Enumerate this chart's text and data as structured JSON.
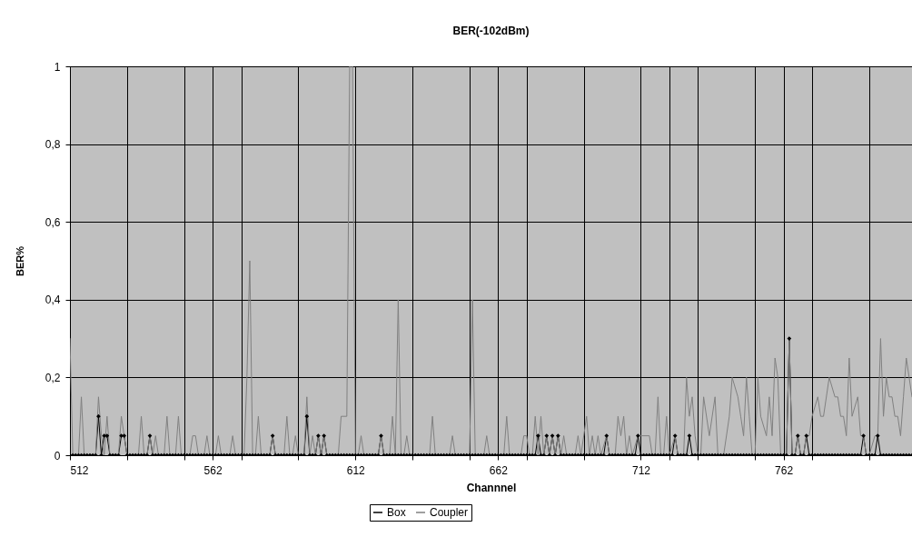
{
  "chart_data": {
    "type": "line",
    "title": "BER(-102dBm)",
    "xlabel": "Channnel",
    "ylabel": "BER%",
    "xlim": [
      512,
      807
    ],
    "xticks": [
      512,
      {
        "value": 532,
        "label": null
      },
      {
        "value": 552,
        "label": null
      },
      562,
      {
        "value": 572,
        "label": null
      },
      {
        "value": 592,
        "label": null
      },
      612,
      {
        "value": 632,
        "label": null
      },
      {
        "value": 652,
        "label": null
      },
      662,
      {
        "value": 672,
        "label": null
      },
      {
        "value": 692,
        "label": null
      },
      712,
      {
        "value": 722,
        "label": null
      },
      {
        "value": 732,
        "label": null
      },
      {
        "value": 752,
        "label": null
      },
      762,
      {
        "value": 772,
        "label": null
      },
      {
        "value": 792,
        "label": null
      }
    ],
    "ylim": [
      0,
      1
    ],
    "yticks": [
      0,
      {
        "value": 0.2,
        "label": "0,2"
      },
      {
        "value": 0.4,
        "label": "0,4"
      },
      {
        "value": 0.6,
        "label": "0,6"
      },
      {
        "value": 0.8,
        "label": "0,8"
      },
      1
    ],
    "grid": true,
    "legend": "bottom",
    "x": [
      512,
      513,
      514,
      515,
      516,
      517,
      518,
      519,
      520,
      521,
      522,
      523,
      524,
      525,
      526,
      527,
      528,
      529,
      530,
      531,
      532,
      533,
      534,
      535,
      536,
      537,
      538,
      539,
      540,
      541,
      542,
      543,
      544,
      545,
      546,
      547,
      548,
      549,
      550,
      551,
      552,
      553,
      554,
      555,
      556,
      557,
      558,
      559,
      560,
      561,
      562,
      563,
      564,
      565,
      566,
      567,
      568,
      569,
      570,
      571,
      572,
      573,
      574,
      575,
      576,
      577,
      578,
      579,
      580,
      581,
      582,
      583,
      584,
      585,
      586,
      587,
      588,
      589,
      590,
      591,
      592,
      593,
      594,
      595,
      596,
      597,
      598,
      599,
      600,
      601,
      602,
      603,
      604,
      605,
      606,
      607,
      608,
      609,
      610,
      611,
      612,
      613,
      614,
      615,
      616,
      617,
      618,
      619,
      620,
      621,
      622,
      623,
      624,
      625,
      626,
      627,
      628,
      629,
      630,
      631,
      632,
      633,
      634,
      635,
      636,
      637,
      638,
      639,
      640,
      641,
      642,
      643,
      644,
      645,
      646,
      647,
      648,
      649,
      650,
      651,
      652,
      653,
      654,
      655,
      656,
      657,
      658,
      659,
      660,
      661,
      662,
      663,
      664,
      665,
      666,
      667,
      668,
      669,
      670,
      671,
      672,
      673,
      674,
      675,
      676,
      677,
      678,
      679,
      680,
      681,
      682,
      683,
      684,
      685,
      686,
      687,
      688,
      689,
      690,
      691,
      692,
      693,
      694,
      695,
      696,
      697,
      698,
      699,
      700,
      701,
      702,
      703,
      704,
      705,
      706,
      707,
      708,
      709,
      710,
      711,
      712,
      713,
      714,
      715,
      716,
      717,
      718,
      719,
      720,
      721,
      722,
      723,
      724,
      725,
      726,
      727,
      728,
      729,
      730,
      731,
      732,
      733,
      734,
      735,
      736,
      737,
      738,
      739,
      740,
      741,
      742,
      743,
      744,
      745,
      746,
      747,
      748,
      749,
      750,
      751,
      752,
      753,
      754,
      755,
      756,
      757,
      758,
      759,
      760,
      761,
      762,
      763,
      764,
      765,
      766,
      767,
      768,
      769,
      770,
      771,
      772,
      773,
      774,
      775,
      776,
      777,
      778,
      779,
      780,
      781,
      782,
      783,
      784,
      785,
      786,
      787,
      788,
      789,
      790,
      791,
      792,
      793,
      794,
      795,
      796,
      797,
      798,
      799,
      800,
      801,
      802,
      803,
      804,
      805,
      806,
      807
    ],
    "series": [
      {
        "name": "Box",
        "color": "#000000",
        "marker": "diamond",
        "values": [
          0,
          0,
          0,
          0,
          0,
          0,
          0,
          0,
          0,
          0,
          0.1,
          0,
          0.05,
          0.05,
          0,
          0,
          0,
          0,
          0.05,
          0.05,
          0,
          0,
          0,
          0,
          0,
          0,
          0,
          0,
          0.05,
          0,
          0,
          0,
          0,
          0,
          0,
          0,
          0,
          0,
          0,
          0,
          0,
          0,
          0,
          0,
          0,
          0,
          0,
          0,
          0,
          0,
          0,
          0,
          0,
          0,
          0,
          0,
          0,
          0,
          0,
          0,
          0,
          0,
          0,
          0,
          0,
          0,
          0,
          0,
          0,
          0,
          0,
          0.05,
          0,
          0,
          0,
          0,
          0,
          0,
          0,
          0,
          0,
          0,
          0,
          0.1,
          0,
          0,
          0,
          0.05,
          0,
          0.05,
          0,
          0,
          0,
          0,
          0,
          0,
          0,
          0,
          0,
          0,
          0,
          0,
          0,
          0,
          0,
          0,
          0,
          0,
          0,
          0.05,
          0,
          0,
          0,
          0,
          0,
          0,
          0,
          0,
          0,
          0,
          0,
          0,
          0,
          0,
          0,
          0,
          0,
          0,
          0,
          0,
          0,
          0,
          0,
          0,
          0,
          0,
          0,
          0,
          0,
          0,
          0,
          0,
          0,
          0,
          0,
          0,
          0,
          0,
          0,
          0,
          0,
          0,
          0,
          0,
          0,
          0,
          0,
          0,
          0,
          0,
          0,
          0,
          0,
          0,
          0.05,
          0,
          0,
          0.05,
          0,
          0.05,
          0,
          0.05,
          0,
          0,
          0,
          0,
          0,
          0,
          0,
          0,
          0,
          0,
          0,
          0,
          0,
          0,
          0,
          0,
          0.05,
          0,
          0,
          0,
          0,
          0,
          0,
          0,
          0,
          0,
          0,
          0.05,
          0,
          0,
          0,
          0,
          0,
          0,
          0,
          0,
          0,
          0,
          0,
          0,
          0.05,
          0,
          0,
          0,
          0,
          0.05,
          0,
          0,
          0,
          0,
          0,
          0,
          0,
          0,
          0,
          0,
          0,
          0,
          0,
          0,
          0,
          0,
          0,
          0,
          0,
          0,
          0,
          0,
          0,
          0,
          0,
          0,
          0,
          0,
          0,
          0,
          0,
          0,
          0,
          0,
          0.3,
          0,
          0,
          0.05,
          0,
          0,
          0.05,
          0,
          0,
          0,
          0,
          0,
          0,
          0,
          0,
          0,
          0,
          0,
          0,
          0,
          0,
          0,
          0,
          0,
          0,
          0,
          0.05,
          0,
          0,
          0,
          0,
          0.05,
          0,
          0,
          0,
          0,
          0,
          0,
          0,
          0,
          0,
          0,
          0,
          0
        ]
      },
      {
        "name": "Coupler",
        "color": "#808080",
        "marker": "none",
        "x": [
          512,
          513,
          515,
          516,
          517,
          521,
          522,
          523,
          524,
          525,
          526,
          529,
          530,
          531,
          532,
          536,
          537,
          538,
          539,
          540,
          541,
          542,
          543,
          545,
          546,
          547,
          549,
          550,
          551,
          554,
          555,
          556,
          557,
          559,
          560,
          561,
          563,
          564,
          565,
          568,
          569,
          570,
          573,
          574,
          575,
          576,
          577,
          578,
          579,
          582,
          583,
          584,
          587,
          588,
          589,
          590,
          591,
          592,
          594,
          595,
          596,
          597,
          598,
          599,
          600,
          601,
          602,
          606,
          607,
          609,
          610,
          611,
          612,
          613,
          614,
          615,
          620,
          621,
          622,
          624,
          625,
          626,
          627,
          628,
          629,
          630,
          631,
          638,
          639,
          640,
          645,
          646,
          647,
          652,
          653,
          654,
          657,
          658,
          659,
          664,
          665,
          666,
          670,
          671,
          672,
          673,
          674,
          675,
          676,
          677,
          678,
          679,
          680,
          681,
          682,
          683,
          684,
          685,
          686,
          689,
          690,
          691,
          693,
          694,
          695,
          696,
          697,
          698,
          700,
          701,
          703,
          704,
          705,
          706,
          707,
          708,
          709,
          711,
          715,
          716,
          717,
          718,
          719,
          720,
          721,
          722,
          724,
          725,
          727,
          728,
          729,
          730,
          731,
          732,
          733,
          734,
          736,
          738,
          739,
          741,
          743,
          744,
          746,
          747,
          748,
          749,
          750,
          751,
          752,
          753,
          754,
          756,
          757,
          758,
          759,
          760,
          761,
          763,
          764,
          765,
          766,
          767,
          768,
          769,
          770,
          771,
          772,
          774,
          775,
          776,
          778,
          780,
          781,
          782,
          783,
          784,
          785,
          786,
          788,
          789,
          790,
          791,
          792,
          794,
          795,
          796,
          797,
          798,
          799,
          800,
          801,
          802,
          803,
          804,
          805,
          806,
          807
        ],
        "values": [
          0.3,
          0,
          0,
          0.15,
          0,
          0,
          0.15,
          0.05,
          0,
          0.1,
          0,
          0,
          0.1,
          0.05,
          0,
          0,
          0.1,
          0,
          0,
          0.05,
          0,
          0.05,
          0,
          0,
          0.1,
          0,
          0,
          0.1,
          0,
          0,
          0.05,
          0.05,
          0,
          0,
          0.05,
          0,
          0,
          0.05,
          0,
          0,
          0.05,
          0,
          0,
          0.2,
          0.5,
          0,
          0,
          0.1,
          0,
          0,
          0.05,
          0,
          0,
          0.1,
          0,
          0,
          0.05,
          0,
          0,
          0.15,
          0,
          0.05,
          0,
          0.05,
          0,
          0.05,
          0,
          0,
          0.1,
          0.1,
          1,
          1,
          0,
          0,
          0.05,
          0,
          0,
          0.05,
          0,
          0,
          0.1,
          0,
          0.4,
          0,
          0,
          0.05,
          0,
          0,
          0.1,
          0,
          0,
          0.05,
          0,
          0,
          0.4,
          0,
          0,
          0.05,
          0,
          0,
          0.1,
          0,
          0,
          0.05,
          0.05,
          0,
          0,
          0.1,
          0,
          0.1,
          0,
          0.05,
          0,
          0.05,
          0,
          0.05,
          0,
          0.05,
          0,
          0,
          0.05,
          0,
          0.1,
          0,
          0.05,
          0,
          0.05,
          0,
          0.05,
          0,
          0,
          0.1,
          0.05,
          0.1,
          0,
          0.05,
          0,
          0.05,
          0.05,
          0,
          0,
          0.15,
          0,
          0,
          0.1,
          0,
          0.05,
          0,
          0,
          0.2,
          0.1,
          0.15,
          0.05,
          0,
          0,
          0.15,
          0.05,
          0.15,
          0,
          0,
          0.1,
          0.2,
          0.15,
          0.1,
          0.05,
          0.2,
          0.1,
          0,
          0,
          0.2,
          0.1,
          0.05,
          0.15,
          0.05,
          0.25,
          0.2,
          0,
          0,
          0.3,
          0,
          0,
          0.05,
          0,
          0,
          0.05,
          0.05,
          0.1,
          0.15,
          0.1,
          0.1,
          0.2,
          0.15,
          0.15,
          0.1,
          0.1,
          0.05,
          0.25,
          0.1,
          0.15,
          0.05,
          0.05,
          0,
          0,
          0.05,
          0.05,
          0.3,
          0.1,
          0.2,
          0.15,
          0.15,
          0.1,
          0.1,
          0.05,
          0.15,
          0.25,
          0.2,
          0.15
        ]
      }
    ]
  }
}
